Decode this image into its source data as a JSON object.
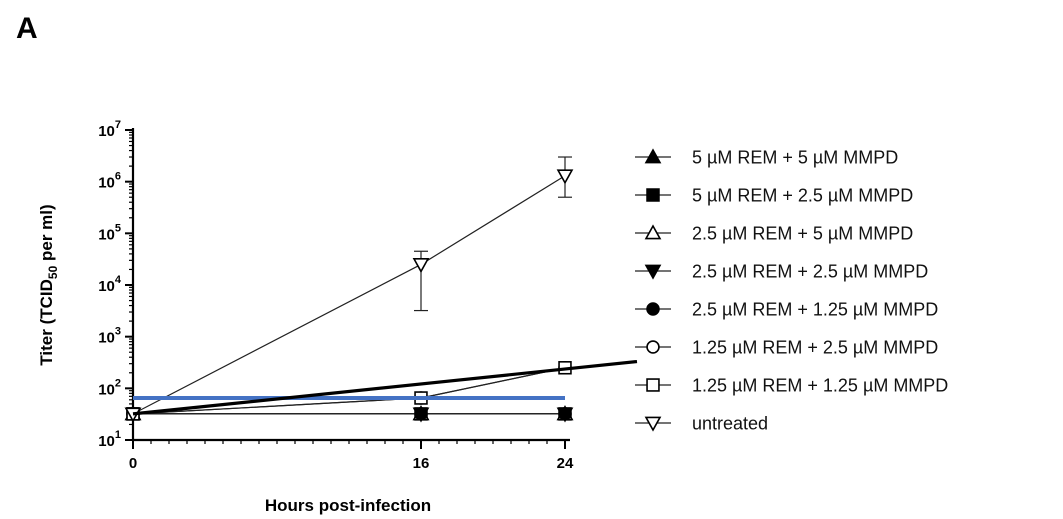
{
  "panel_label": "A",
  "chart_data": {
    "type": "line",
    "xlabel": "Hours post-infection",
    "ylabel_main": "Titer (TCID",
    "ylabel_sub": "50",
    "ylabel_tail": " per ml)",
    "x_ticks": [
      "0",
      "16",
      "24"
    ],
    "x_tick_values": [
      0,
      16,
      24
    ],
    "y_scale": "log",
    "y_ticks": [
      {
        "base": "10",
        "exp": "1",
        "value": 10
      },
      {
        "base": "10",
        "exp": "2",
        "value": 100
      },
      {
        "base": "10",
        "exp": "3",
        "value": 1000
      },
      {
        "base": "10",
        "exp": "4",
        "value": 10000
      },
      {
        "base": "10",
        "exp": "5",
        "value": 100000
      },
      {
        "base": "10",
        "exp": "6",
        "value": 1000000
      },
      {
        "base": "10",
        "exp": "7",
        "value": 10000000
      }
    ],
    "xlim": [
      0,
      24
    ],
    "ylim": [
      10,
      10000000
    ],
    "legend_position": "right",
    "series": [
      {
        "name": "5 µM REM + 5 µM MMPD",
        "marker": "triangle-up-filled",
        "x": [
          0,
          16,
          24
        ],
        "y": [
          32,
          32,
          32
        ]
      },
      {
        "name": "5 µM REM + 2.5 µM MMPD",
        "marker": "square-filled",
        "x": [
          0,
          16,
          24
        ],
        "y": [
          32,
          32,
          32
        ]
      },
      {
        "name": "2.5 µM REM + 5 µM MMPD",
        "marker": "triangle-up-open",
        "x": [
          0,
          16,
          24
        ],
        "y": [
          32,
          32,
          32
        ]
      },
      {
        "name": "2.5 µM REM + 2.5 µM MMPD",
        "marker": "triangle-down-filled",
        "x": [
          0,
          16,
          24
        ],
        "y": [
          32,
          32,
          32
        ]
      },
      {
        "name": "2.5 µM REM + 1.25 µM MMPD",
        "marker": "circle-filled",
        "x": [
          0,
          16,
          24
        ],
        "y": [
          32,
          32,
          32
        ]
      },
      {
        "name": "1.25 µM REM + 2.5 µM MMPD",
        "marker": "circle-open",
        "x": [
          0,
          16,
          24
        ],
        "y": [
          32,
          65,
          250
        ]
      },
      {
        "name": "1.25 µM REM + 1.25 µM MMPD",
        "marker": "square-open",
        "x": [
          0,
          16,
          24
        ],
        "y": [
          32,
          65,
          250
        ]
      },
      {
        "name": "untreated",
        "marker": "triangle-down-open",
        "x": [
          0,
          16,
          24
        ],
        "y": [
          32,
          25000,
          1300000
        ],
        "err_low": [
          null,
          3200,
          500000
        ],
        "err_high": [
          null,
          45000,
          3000000
        ]
      }
    ],
    "reference_lines": [
      {
        "color": "#4472c4",
        "y": 65,
        "x_start": 0,
        "x_end": 24
      },
      {
        "color": "#000000",
        "x_start": 0,
        "y_start": 32,
        "x_end": 28,
        "y_end": 330
      }
    ]
  }
}
